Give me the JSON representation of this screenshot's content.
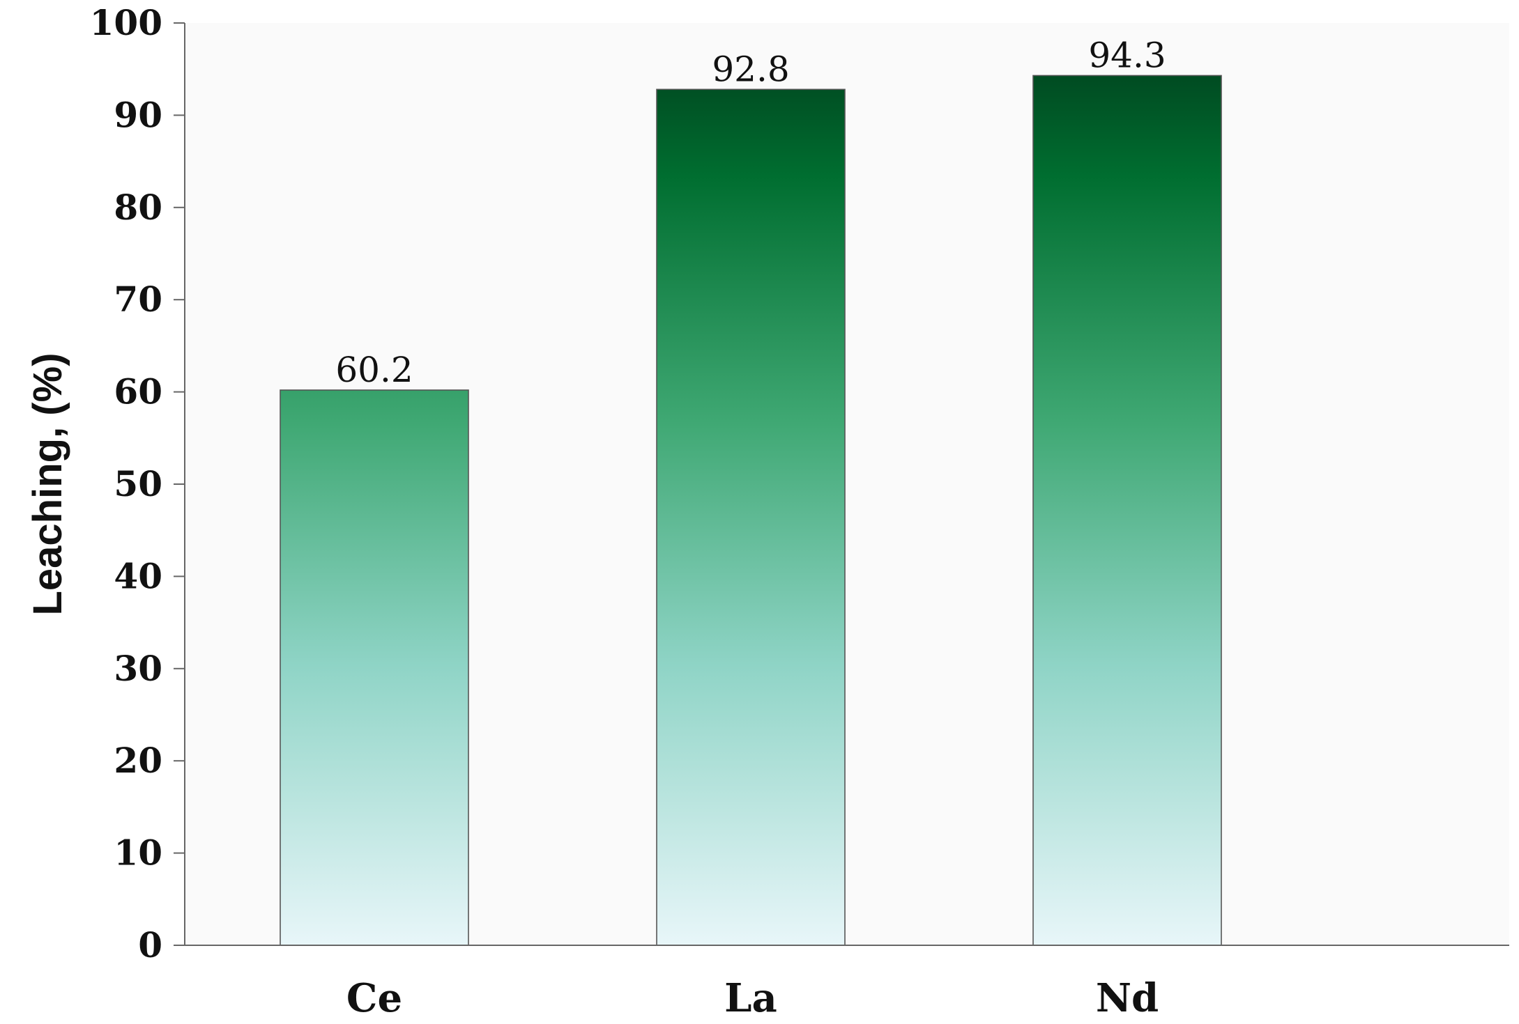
{
  "chart_data": {
    "type": "bar",
    "title": "",
    "xlabel": "",
    "ylabel": "Leaching, (%)",
    "categories": [
      "Ce",
      "La",
      "Nd"
    ],
    "values": [
      60.2,
      92.8,
      94.3
    ],
    "data_labels": [
      "60.2",
      "92.8",
      "94.3"
    ],
    "ylim": [
      0,
      100
    ],
    "yticks": [
      "0",
      "10",
      "20",
      "30",
      "40",
      "50",
      "60",
      "70",
      "80",
      "90",
      "100"
    ],
    "grid": false,
    "legend": "none",
    "colors": {
      "plot_background": "#fafafa",
      "bar_top": "#004a21",
      "bar_mid_dark": "#006e30",
      "bar_mid": "#3fa873",
      "bar_mid_light": "#8fd4c6",
      "bar_bottom": "#e8f6f9",
      "bar_outline": "#555555",
      "axis": "#666666"
    }
  }
}
